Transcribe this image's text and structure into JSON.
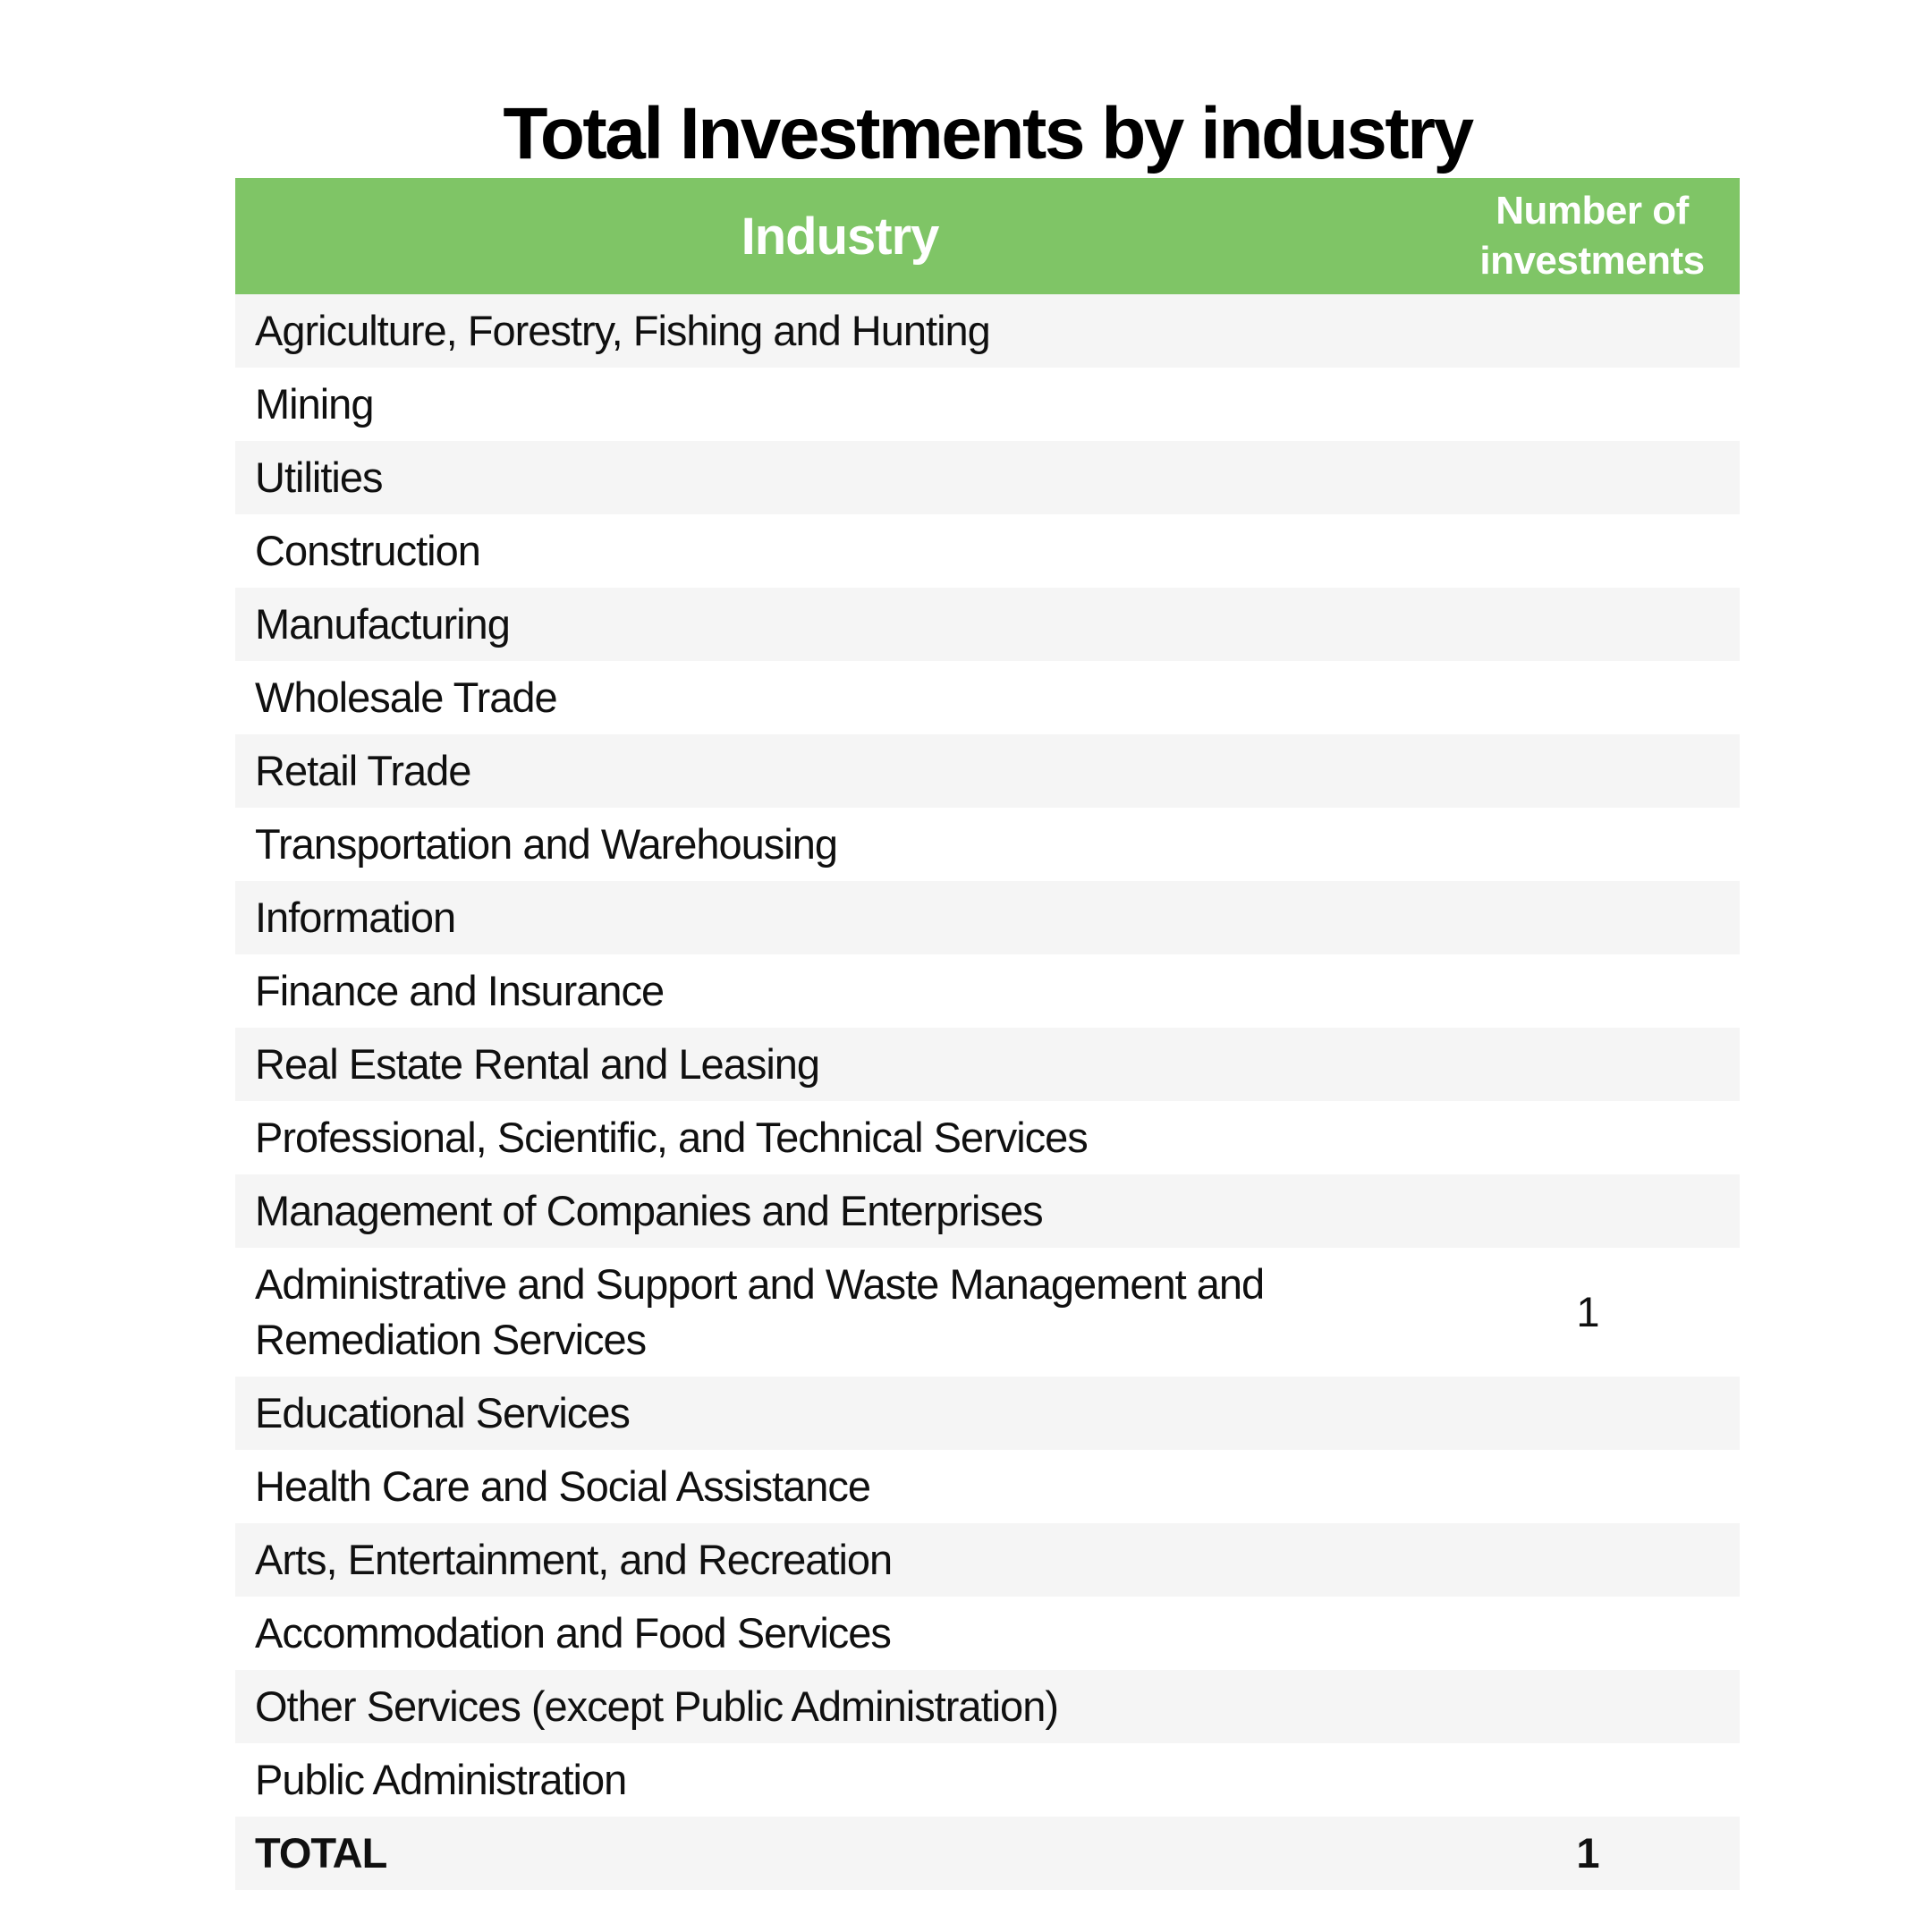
{
  "page_title": "Total Investments by industry",
  "colors": {
    "header_bg": "#7FC566",
    "header_text": "#FFFFFF",
    "alt_row_bg": "#F5F5F5",
    "row_bg": "#FFFFFF",
    "text": "#101010"
  },
  "table": {
    "header": {
      "industry": "Industry",
      "investments": "Number of investments"
    },
    "rows": [
      {
        "industry": "Agriculture, Forestry, Fishing and Hunting",
        "value": ""
      },
      {
        "industry": "Mining",
        "value": ""
      },
      {
        "industry": "Utilities",
        "value": ""
      },
      {
        "industry": "Construction",
        "value": ""
      },
      {
        "industry": "Manufacturing",
        "value": ""
      },
      {
        "industry": "Wholesale Trade",
        "value": ""
      },
      {
        "industry": "Retail Trade",
        "value": ""
      },
      {
        "industry": "Transportation and Warehousing",
        "value": ""
      },
      {
        "industry": "Information",
        "value": ""
      },
      {
        "industry": "Finance and Insurance",
        "value": ""
      },
      {
        "industry": "Real Estate Rental and Leasing",
        "value": ""
      },
      {
        "industry": "Professional, Scientific, and Technical Services",
        "value": ""
      },
      {
        "industry": "Management of Companies and Enterprises",
        "value": ""
      },
      {
        "industry": "Administrative and Support and Waste Management and Remediation Services",
        "value": "1"
      },
      {
        "industry": "Educational Services",
        "value": ""
      },
      {
        "industry": "Health Care and Social Assistance",
        "value": ""
      },
      {
        "industry": "Arts, Entertainment, and Recreation",
        "value": ""
      },
      {
        "industry": "Accommodation and Food Services",
        "value": ""
      },
      {
        "industry": "Other Services (except Public Administration)",
        "value": ""
      },
      {
        "industry": "Public Administration",
        "value": ""
      }
    ],
    "total": {
      "label": "TOTAL",
      "value": "1"
    }
  },
  "chart_data": {
    "type": "table",
    "title": "Total Investments by industry",
    "columns": [
      "Industry",
      "Number of investments"
    ],
    "rows": [
      [
        "Agriculture, Forestry, Fishing and Hunting",
        null
      ],
      [
        "Mining",
        null
      ],
      [
        "Utilities",
        null
      ],
      [
        "Construction",
        null
      ],
      [
        "Manufacturing",
        null
      ],
      [
        "Wholesale Trade",
        null
      ],
      [
        "Retail Trade",
        null
      ],
      [
        "Transportation and Warehousing",
        null
      ],
      [
        "Information",
        null
      ],
      [
        "Finance and Insurance",
        null
      ],
      [
        "Real Estate Rental and Leasing",
        null
      ],
      [
        "Professional, Scientific, and Technical Services",
        null
      ],
      [
        "Management of Companies and Enterprises",
        null
      ],
      [
        "Administrative and Support and Waste Management and Remediation Services",
        1
      ],
      [
        "Educational Services",
        null
      ],
      [
        "Health Care and Social Assistance",
        null
      ],
      [
        "Arts, Entertainment, and Recreation",
        null
      ],
      [
        "Accommodation and Food Services",
        null
      ],
      [
        "Other Services (except Public Administration)",
        null
      ],
      [
        "Public Administration",
        null
      ],
      [
        "TOTAL",
        1
      ]
    ]
  }
}
